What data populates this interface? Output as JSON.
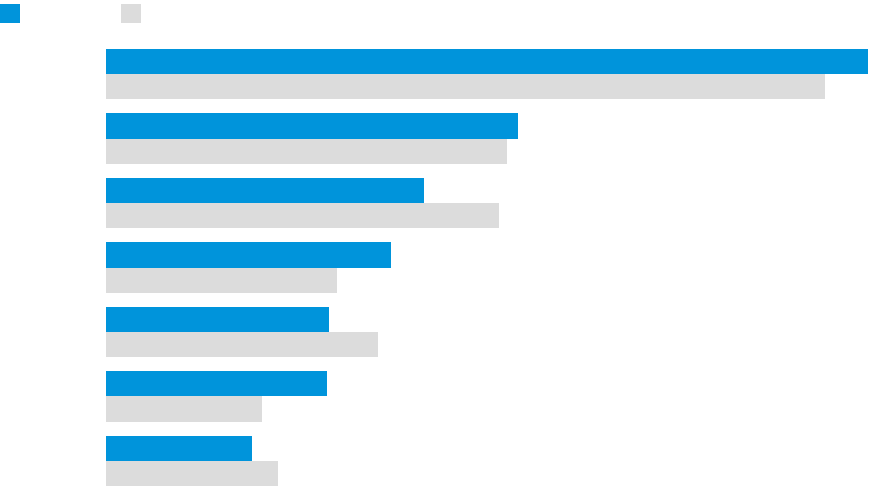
{
  "chart_data": {
    "type": "bar",
    "orientation": "horizontal",
    "categories": [
      "",
      "",
      "",
      "",
      "",
      "",
      ""
    ],
    "series": [
      {
        "color": "#0094db",
        "values": [
          1238,
          739,
          605,
          558,
          470,
          466,
          359
        ]
      },
      {
        "color": "#dcdcdc",
        "values": [
          1177,
          724,
          712,
          481,
          539,
          374,
          397
        ]
      }
    ],
    "title": "",
    "xlabel": "",
    "ylabel": "",
    "xlim": [
      0,
      1238
    ],
    "grid": false,
    "legend": "top-left"
  }
}
